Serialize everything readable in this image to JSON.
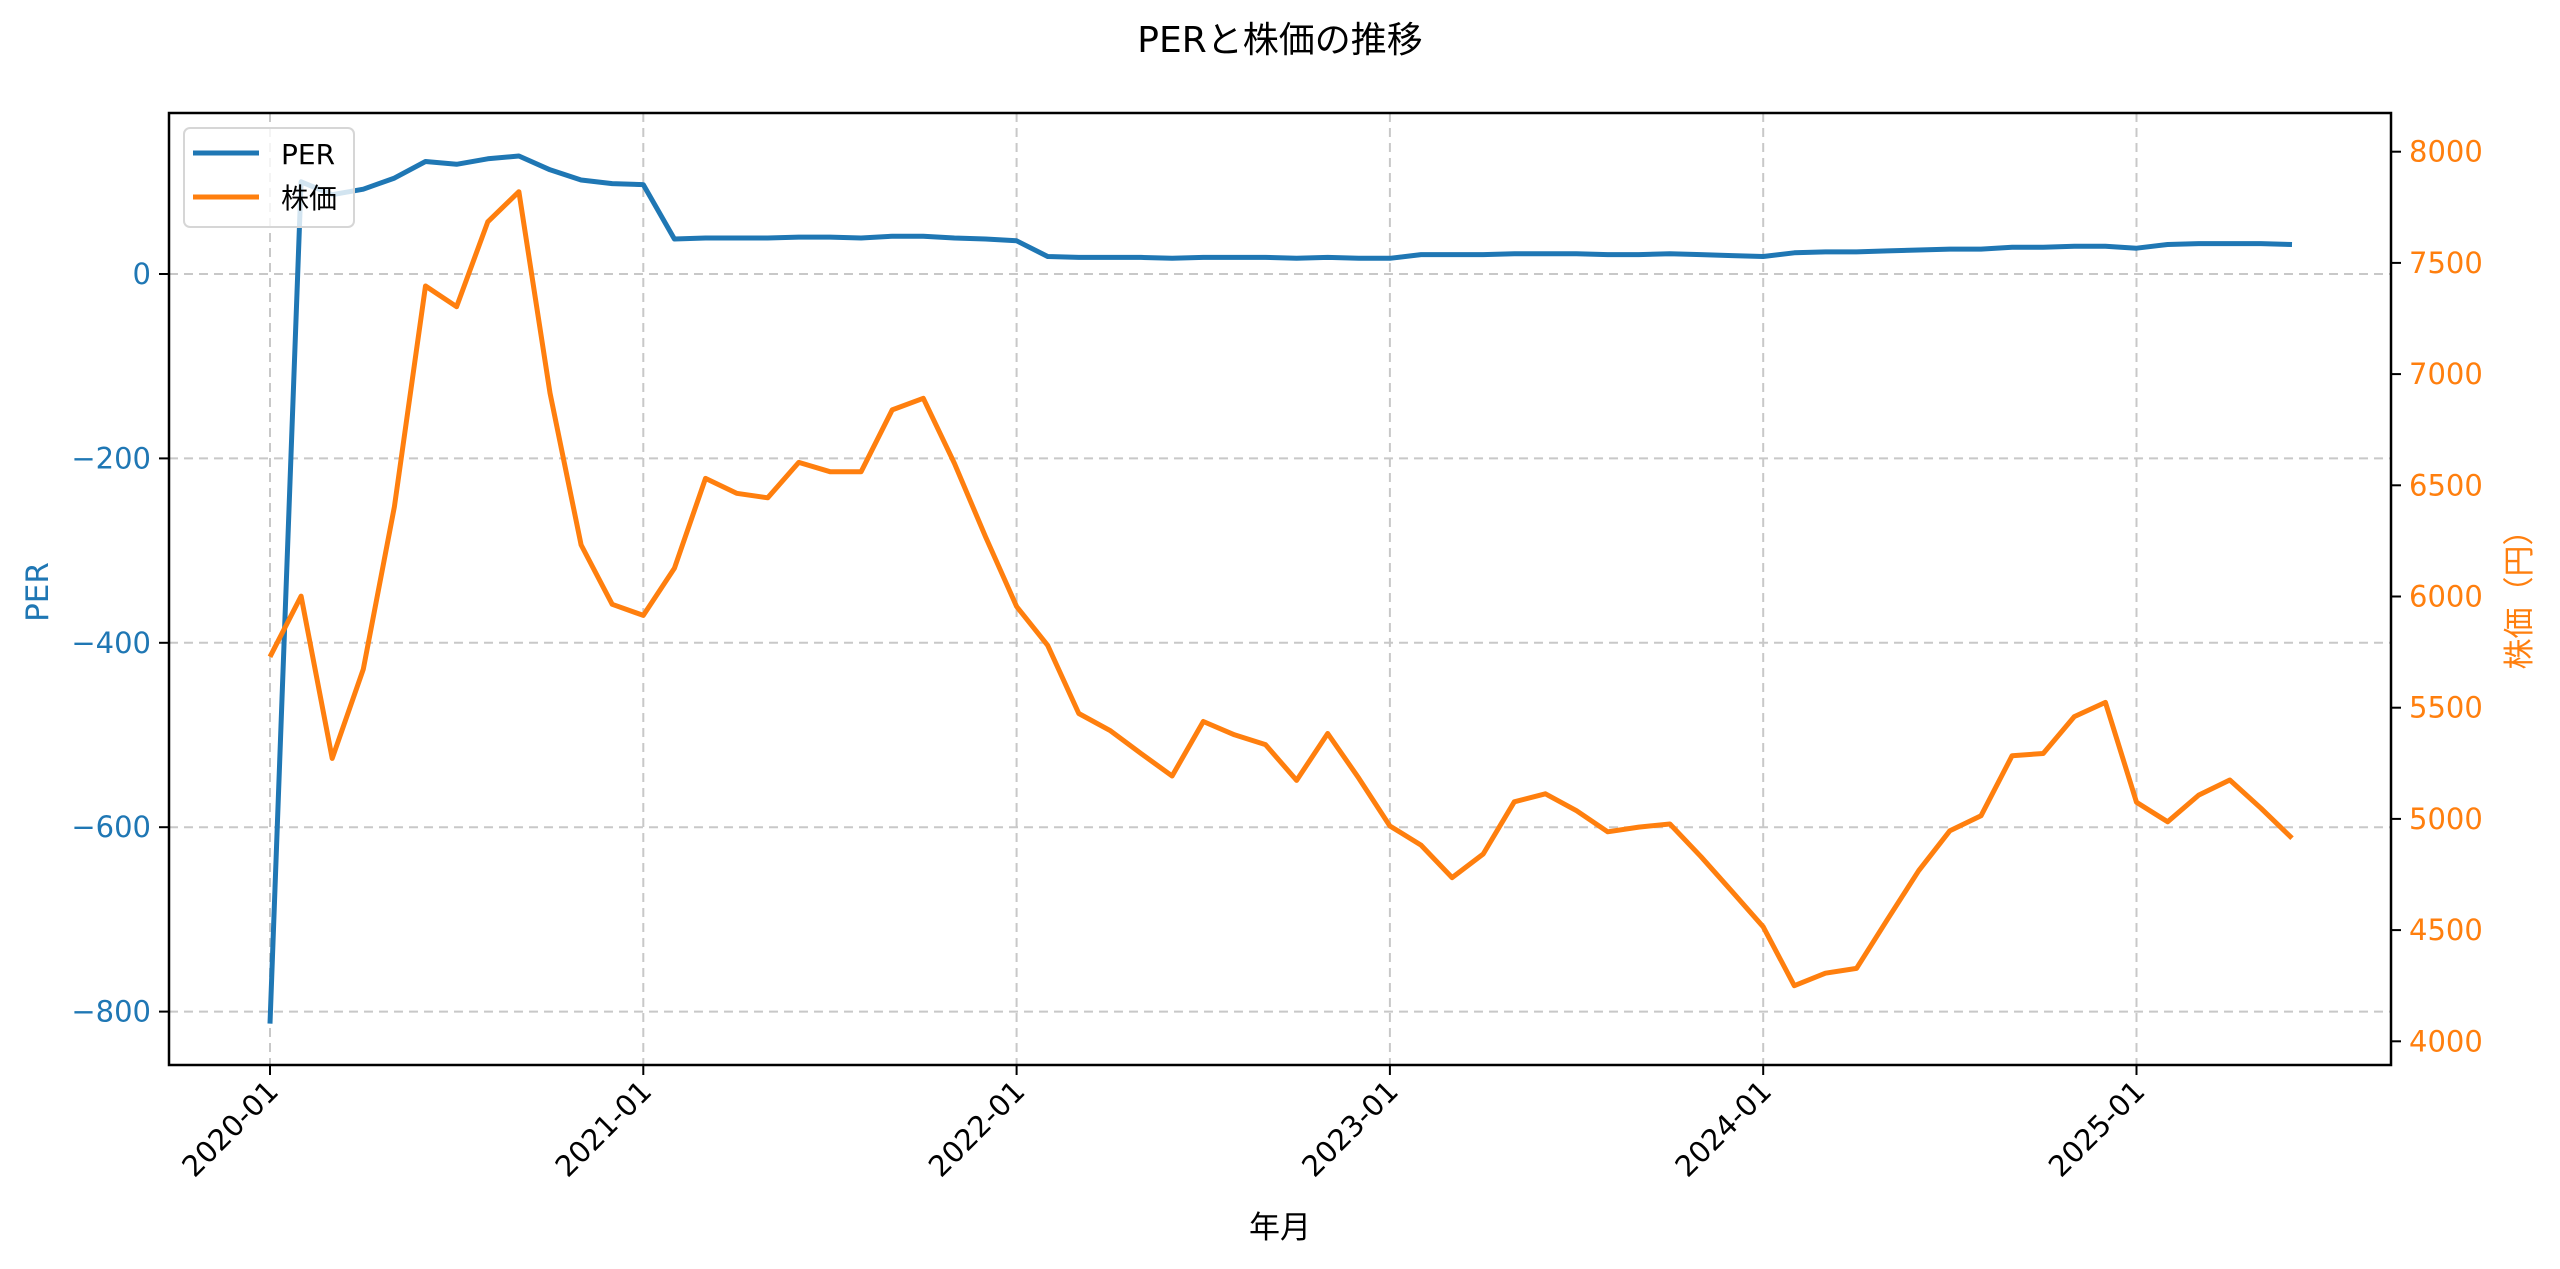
{
  "chart_data": {
    "type": "line",
    "title": "PERと株価の推移",
    "xlabel": "年月",
    "ylabel_left": "PER",
    "ylabel_right": "株価（円）",
    "x_tick_labels": [
      "2020-01",
      "2021-01",
      "2022-01",
      "2023-01",
      "2024-01",
      "2025-01"
    ],
    "y_left_ticks": [
      0,
      -200,
      -400,
      -600,
      -800
    ],
    "y_left_tick_labels": [
      "0",
      "−200",
      "−400",
      "−600",
      "−800"
    ],
    "y_right_ticks": [
      8000,
      7500,
      7000,
      6500,
      6000,
      5500,
      5000,
      4500,
      4000
    ],
    "y_right_tick_labels": [
      "8000",
      "7500",
      "7000",
      "6500",
      "6000",
      "5500",
      "5000",
      "4500",
      "4000"
    ],
    "ylim_left": [
      -859,
      175
    ],
    "ylim_right": [
      3895,
      8175
    ],
    "grid": true,
    "legend_position": "upper left",
    "x": [
      "2020-01",
      "2020-02",
      "2020-03",
      "2020-04",
      "2020-05",
      "2020-06",
      "2020-07",
      "2020-08",
      "2020-09",
      "2020-10",
      "2020-11",
      "2020-12",
      "2021-01",
      "2021-02",
      "2021-03",
      "2021-04",
      "2021-05",
      "2021-06",
      "2021-07",
      "2021-08",
      "2021-09",
      "2021-10",
      "2021-11",
      "2021-12",
      "2022-01",
      "2022-02",
      "2022-03",
      "2022-04",
      "2022-05",
      "2022-06",
      "2022-07",
      "2022-08",
      "2022-09",
      "2022-10",
      "2022-11",
      "2022-12",
      "2023-01",
      "2023-02",
      "2023-03",
      "2023-04",
      "2023-05",
      "2023-06",
      "2023-07",
      "2023-08",
      "2023-09",
      "2023-10",
      "2023-11",
      "2023-12",
      "2024-01",
      "2024-02",
      "2024-03",
      "2024-04",
      "2024-05",
      "2024-06",
      "2024-07",
      "2024-08",
      "2024-09",
      "2024-10",
      "2024-11",
      "2024-12",
      "2025-01",
      "2025-02",
      "2025-03",
      "2025-04",
      "2025-05",
      "2025-06"
    ],
    "series": [
      {
        "name": "PER",
        "axis": "left",
        "color": "#1f77b4",
        "values": [
          -813,
          100,
          86,
          92,
          104,
          122,
          119,
          125,
          128,
          113,
          102,
          98,
          97,
          38,
          39,
          39,
          39,
          40,
          40,
          39,
          41,
          41,
          39,
          38,
          36,
          19,
          18,
          18,
          18,
          17,
          18,
          18,
          18,
          17,
          18,
          17,
          17,
          21,
          21,
          21,
          22,
          22,
          22,
          21,
          21,
          22,
          21,
          20,
          19,
          23,
          24,
          24,
          25,
          26,
          27,
          27,
          29,
          29,
          30,
          30,
          28,
          32,
          33,
          33,
          33,
          32
        ]
      },
      {
        "name": "株価",
        "axis": "right",
        "color": "#ff7f0e",
        "values": [
          5729,
          6002,
          5272,
          5673,
          6404,
          7396,
          7303,
          7685,
          7820,
          6915,
          6232,
          5965,
          5915,
          6127,
          6531,
          6464,
          6444,
          6603,
          6561,
          6561,
          6839,
          6891,
          6599,
          6269,
          5955,
          5780,
          5474,
          5398,
          5294,
          5193,
          5438,
          5378,
          5334,
          5173,
          5384,
          5183,
          4968,
          4882,
          4736,
          4842,
          5077,
          5113,
          5037,
          4942,
          4963,
          4977,
          4830,
          4673,
          4515,
          4250,
          4306,
          4328,
          4549,
          4767,
          4947,
          5014,
          5284,
          5294,
          5460,
          5524,
          5075,
          4987,
          5107,
          5175,
          5048,
          4913
        ]
      }
    ]
  },
  "legend": {
    "items": [
      {
        "label": "PER",
        "color": "#1f77b4"
      },
      {
        "label": "株価",
        "color": "#ff7f0e"
      }
    ]
  }
}
